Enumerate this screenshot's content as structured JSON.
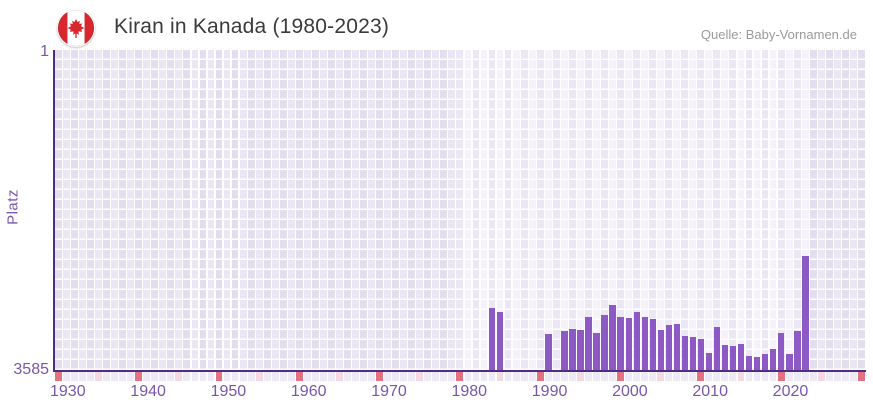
{
  "header": {
    "title": "Kiran in Kanada (1980-2023)",
    "source": "Quelle: Baby-Vornamen.de",
    "flag_icon": "canada-flag-icon"
  },
  "chart_data": {
    "type": "bar",
    "title": "Kiran in Kanada (1980-2023)",
    "xlabel": "",
    "ylabel": "Platz",
    "legend": "none",
    "grid": "on",
    "y_axis": {
      "min": 1,
      "max": 3585,
      "inverted": true,
      "tick_labels": [
        "1",
        "3585"
      ]
    },
    "x_axis": {
      "plot_start_year": 1930,
      "plot_end_year": 2030,
      "highlight_range": [
        1980,
        2023
      ],
      "tick_years": [
        1930,
        1940,
        1950,
        1960,
        1970,
        1980,
        1990,
        2000,
        2010,
        2020
      ],
      "decade_marker_interval": 10,
      "half_decade_marker_interval": 5
    },
    "series": [
      {
        "name": "Platz",
        "points": [
          {
            "year": 1984,
            "rank": 2895
          },
          {
            "year": 1985,
            "rank": 2935
          },
          {
            "year": 1991,
            "rank": 3185
          },
          {
            "year": 1993,
            "rank": 3150
          },
          {
            "year": 1994,
            "rank": 3120
          },
          {
            "year": 1995,
            "rank": 3135
          },
          {
            "year": 1996,
            "rank": 2990
          },
          {
            "year": 1997,
            "rank": 3175
          },
          {
            "year": 1998,
            "rank": 2965
          },
          {
            "year": 1999,
            "rank": 2860
          },
          {
            "year": 2000,
            "rank": 2995
          },
          {
            "year": 2001,
            "rank": 3000
          },
          {
            "year": 2002,
            "rank": 2930
          },
          {
            "year": 2003,
            "rank": 2995
          },
          {
            "year": 2004,
            "rank": 3015
          },
          {
            "year": 2005,
            "rank": 3140
          },
          {
            "year": 2006,
            "rank": 3080
          },
          {
            "year": 2007,
            "rank": 3065
          },
          {
            "year": 2008,
            "rank": 3205
          },
          {
            "year": 2009,
            "rank": 3210
          },
          {
            "year": 2010,
            "rank": 3240
          },
          {
            "year": 2011,
            "rank": 3390
          },
          {
            "year": 2012,
            "rank": 3105
          },
          {
            "year": 2013,
            "rank": 3305
          },
          {
            "year": 2014,
            "rank": 3315
          },
          {
            "year": 2015,
            "rank": 3295
          },
          {
            "year": 2016,
            "rank": 3425
          },
          {
            "year": 2017,
            "rank": 3435
          },
          {
            "year": 2018,
            "rank": 3405
          },
          {
            "year": 2019,
            "rank": 3350
          },
          {
            "year": 2020,
            "rank": 3170
          },
          {
            "year": 2021,
            "rank": 3400
          },
          {
            "year": 2022,
            "rank": 3150
          },
          {
            "year": 2023,
            "rank": 2310
          }
        ]
      }
    ],
    "colors": {
      "bar": "#8c59c5",
      "axis_line": "#4f2d87",
      "axis_text": "#7a56ab",
      "plot_bg_light": "#f5f2fc",
      "plot_bg_light_alt": "#ebe7f5",
      "plot_bg_dark": "#eae6f3",
      "plot_bg_dark_alt": "#e2deed",
      "grid_line": "#ffffff",
      "strip_cell": "#edeaf6",
      "strip_half_decade": "#f5d9e2",
      "strip_decade": "#e4717f",
      "flag_red": "#d7272f",
      "title_text": "#3b3b3b",
      "source_text": "#9a9a9a"
    }
  }
}
